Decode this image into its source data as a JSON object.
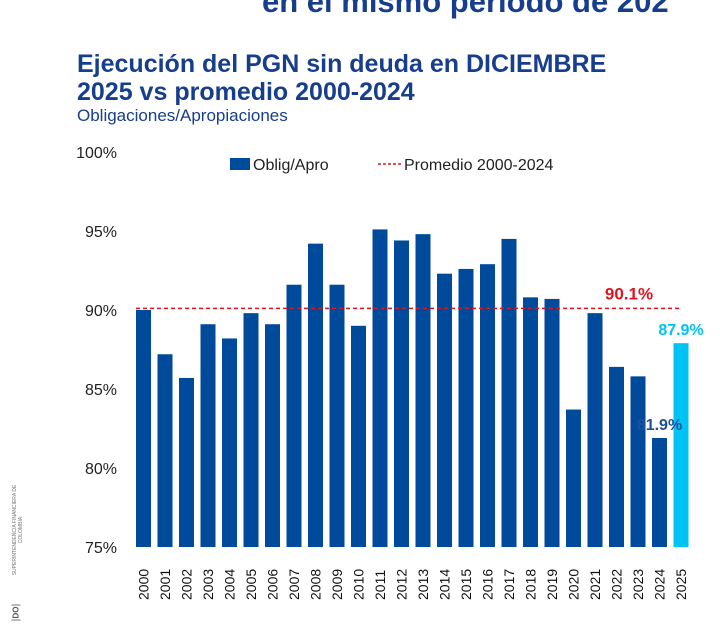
{
  "header": {
    "top_title": "en el mismo periodo de 202",
    "title_line1": "Ejecución del PGN sin deuda en DICIEMBRE",
    "title_line2": "2025 vs promedio 2000-2024",
    "subtitle": "Obligaciones/Apropiaciones"
  },
  "sidebar": {
    "org": "SUPERINTENDENCIA FINANCIERA DE COLOMBIA",
    "logo": "DO"
  },
  "chart_data": {
    "type": "bar",
    "title": "Ejecución del PGN sin deuda en DICIEMBRE 2025 vs promedio 2000-2024",
    "ylabel": "Obligaciones/Apropiaciones",
    "ylim": [
      75,
      100
    ],
    "yticks": [
      "75%",
      "80%",
      "85%",
      "90%",
      "95%",
      "100%"
    ],
    "ytick_values": [
      75,
      80,
      85,
      90,
      95,
      100
    ],
    "categories": [
      "2000",
      "2001",
      "2002",
      "2003",
      "2004",
      "2005",
      "2006",
      "2007",
      "2008",
      "2009",
      "2010",
      "2011",
      "2012",
      "2013",
      "2014",
      "2015",
      "2016",
      "2017",
      "2018",
      "2019",
      "2020",
      "2021",
      "2022",
      "2023",
      "2024",
      "2025"
    ],
    "series": [
      {
        "name": "Oblig/Apro",
        "values": [
          90.0,
          87.2,
          85.7,
          89.1,
          88.2,
          89.8,
          89.1,
          91.6,
          94.2,
          91.6,
          89.0,
          95.1,
          94.4,
          94.8,
          92.3,
          92.6,
          92.9,
          94.5,
          90.8,
          90.7,
          83.7,
          89.8,
          86.4,
          85.8,
          81.9,
          87.9
        ]
      }
    ],
    "reference_line": {
      "name": "Promedio 2000-2024",
      "value": 90.1,
      "label": "90.1%"
    },
    "data_labels": [
      {
        "category": "2024",
        "label": "81.9%"
      },
      {
        "category": "2025",
        "label": "87.9%"
      }
    ],
    "legend": {
      "position": "top",
      "items": [
        "Oblig/Apro",
        "Promedio 2000-2024"
      ]
    },
    "colors": {
      "bar": "#004a9c",
      "highlight": "#00c3f5",
      "reference": "#e0141e",
      "label_2024": "#1d4f9a"
    },
    "grid": false
  }
}
